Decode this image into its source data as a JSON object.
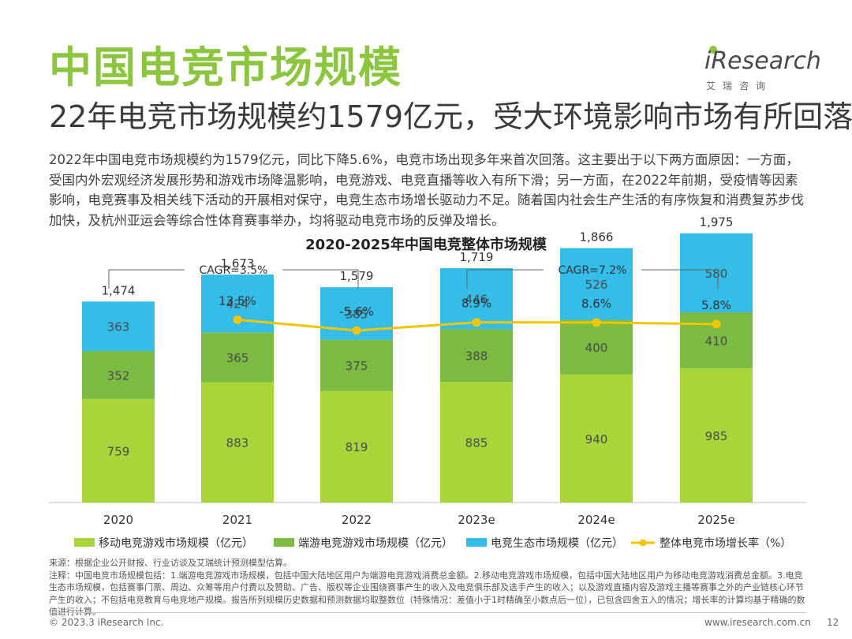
{
  "header": {
    "title": "中国电竞市场规模",
    "subtitle": "22年电竞市场规模约1579亿元，受大环境影响市场有所回落",
    "intro": "2022年中国电竞市场规模约为1579亿元，同比下降5.6%，电竞市场出现多年来首次回落。这主要出于以下两方面原因：一方面，受国内外宏观经济发展形势和游戏市场降温影响，电竞游戏、电竞直播等收入有所下滑；另一方面，在2022年前期，受疫情等因素影响，电竞赛事及相关线下活动的开展相对保守，电竞生态市场增长驱动力不足。随着国内社会生产生活的有序恢复和消费复苏步伐加快，及杭州亚运会等综合性体育赛事举办，均将驱动电竞市场的反弹及增长。"
  },
  "logo": {
    "brand": "iResearch",
    "cn": "艾瑞咨询"
  },
  "colors": {
    "title": "#8cc63f",
    "mobile": "#a8d63a",
    "client": "#7cbb42",
    "ecosystem": "#33bde8",
    "growth": "#f2c500"
  },
  "chart_data": {
    "type": "bar",
    "title": "2020-2025年中国电竞整体市场规模",
    "categories": [
      "2020",
      "2021",
      "2022",
      "2023e",
      "2024e",
      "2025e"
    ],
    "series": [
      {
        "name": "移动电竞游戏市场规模（亿元）",
        "values": [
          759,
          883,
          819,
          885,
          940,
          985
        ]
      },
      {
        "name": "端游电竞游戏市场规模（亿元）",
        "values": [
          352,
          365,
          375,
          388,
          400,
          410
        ]
      },
      {
        "name": "电竞生态市场规模（亿元）",
        "values": [
          363,
          424,
          385,
          446,
          526,
          580
        ]
      }
    ],
    "totals": [
      "1,474",
      "1,673",
      "1,579",
      "1,719",
      "1,866",
      "1,975"
    ],
    "growth": {
      "name": "整体电竞市场增长率（%）",
      "values": [
        13.5,
        -5.6,
        8.9,
        8.6,
        5.8
      ],
      "labels": [
        "13.5%",
        "-5.6%",
        "8.9%",
        "8.6%",
        "5.8%"
      ],
      "categories": [
        "2021",
        "2022",
        "2023e",
        "2024e",
        "2025e"
      ]
    },
    "cagr": [
      {
        "label": "CAGR=3.5%",
        "from": "2020",
        "to": "2022"
      },
      {
        "label": "CAGR=7.2%",
        "from": "2023e",
        "to": "2025e"
      }
    ],
    "ylim": [
      0,
      2000
    ]
  },
  "notes": {
    "source": "来源：根据企业公开财报、行业访谈及艾瑞统计预测模型估算。",
    "note": "注释：中国电竞市场规模包括：1.端游电竞游戏市场规模，包括中国大陆地区用户为端游电竞游戏消费总金额。2.移动电竞游戏市场规模，包括中国大陆地区用户为移动电竞游戏消费总金额。3.电竞生态市场规模，包括赛事门票、周边、众筹等用户付费以及赞助、广告、版权等企业围绕赛事产生的收入及电竞俱乐部及选手产生的收入；以及游戏直播内容及游戏主播等赛事之外的产业链核心环节产生的收入；不包括电竞教育与电竞地产规模。报告所列规模历史数据和预测数据均取整数位（特殊情况：差值小于1时精确至小数点后一位），已包含四舍五入的情况；增长率的计算均基于精确的数值进行计算。"
  },
  "footer": {
    "left": "© 2023.3 iResearch Inc.",
    "right": "www.iresearch.com.cn",
    "page": "12"
  }
}
